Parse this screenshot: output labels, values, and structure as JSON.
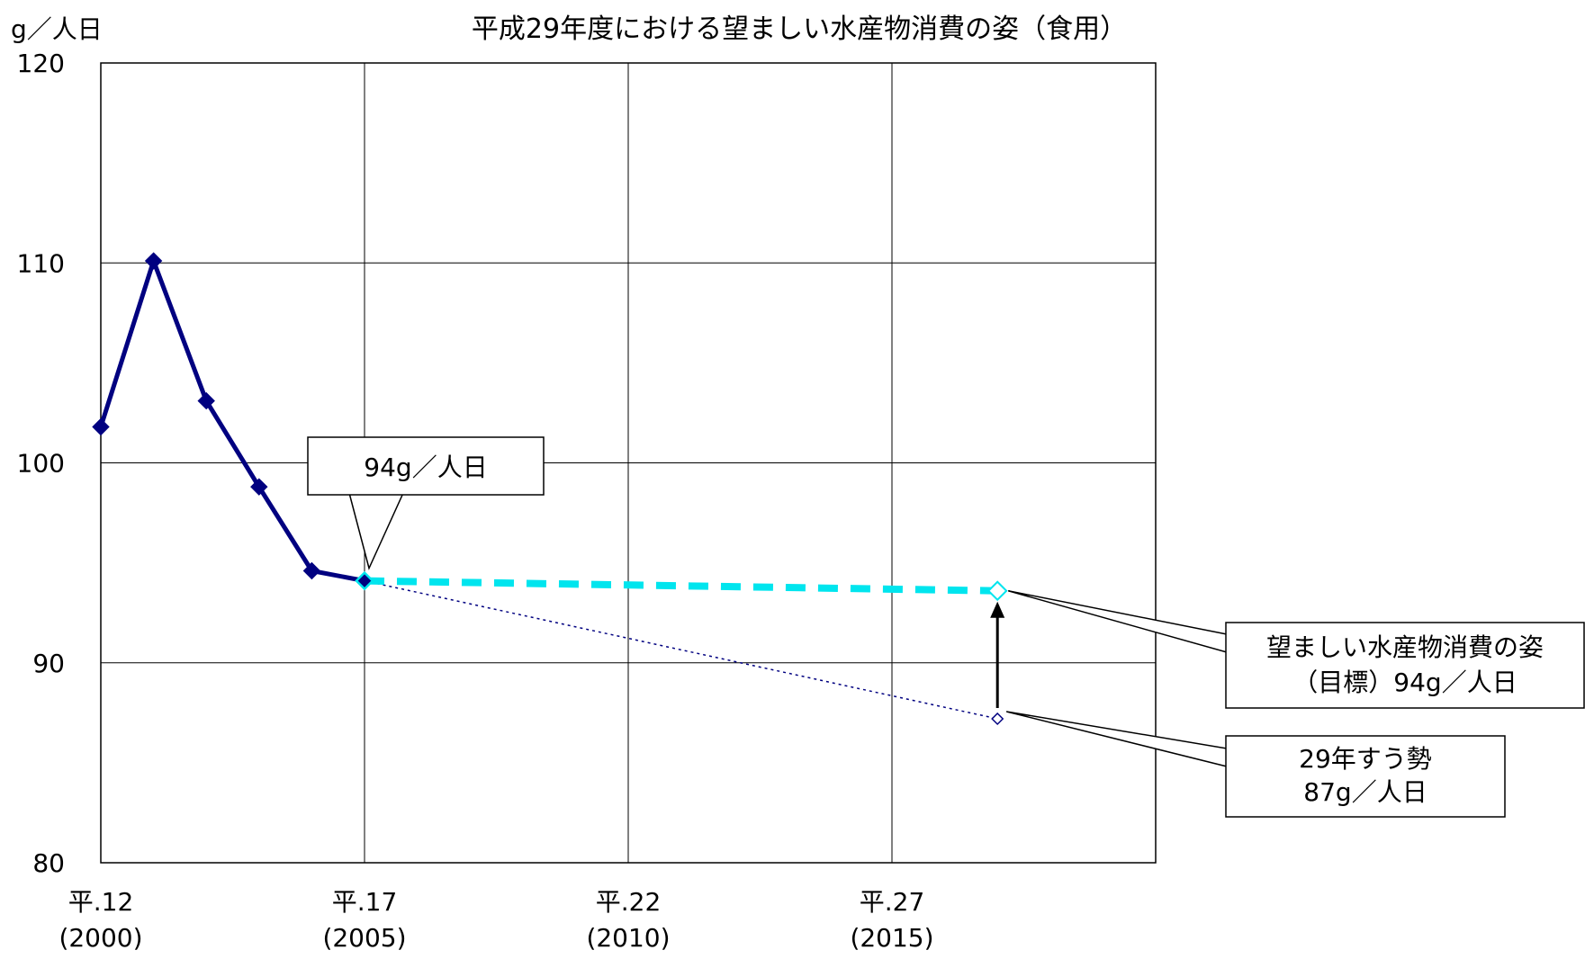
{
  "chart_data": {
    "type": "line",
    "title": "平成29年度における望ましい水産物消費の姿（食用）",
    "ylabel": "g／人日",
    "xlabel": "",
    "ylim": [
      80,
      120
    ],
    "xlim": [
      2000,
      2020
    ],
    "y_ticks": [
      80,
      90,
      100,
      110,
      120
    ],
    "x_ticks": [
      {
        "x": 2000,
        "label1": "平.12",
        "label2": "(2000)"
      },
      {
        "x": 2005,
        "label1": "平.17",
        "label2": "(2005)"
      },
      {
        "x": 2010,
        "label1": "平.22",
        "label2": "(2010)"
      },
      {
        "x": 2015,
        "label1": "平.27",
        "label2": "(2015)"
      }
    ],
    "grid": true,
    "series": [
      {
        "style": "solid-marker-diamond",
        "color": "#000080",
        "x": [
          2000,
          2001,
          2002,
          2003,
          2004,
          2005
        ],
        "y": [
          101.8,
          110.1,
          103.1,
          98.8,
          94.6,
          94.1
        ]
      },
      {
        "style": "thick-dashed",
        "color": "#00e5ee",
        "x": [
          2005,
          2017
        ],
        "y": [
          94.1,
          93.6
        ]
      },
      {
        "style": "thin-dotted",
        "color": "#000080",
        "x": [
          2005,
          2017
        ],
        "y": [
          94.1,
          87.2
        ]
      }
    ],
    "annotations": [
      {
        "id": "current",
        "text": "94g／人日"
      },
      {
        "id": "target",
        "line1": "望ましい水産物消費の姿",
        "line2": "（目標）94g／人日"
      },
      {
        "id": "trend",
        "line1": "29年すう勢",
        "line2": "87g／人日"
      }
    ]
  }
}
